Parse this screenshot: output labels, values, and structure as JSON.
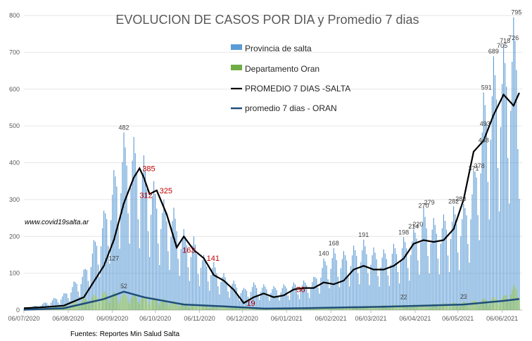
{
  "chart_data": {
    "type": "bar",
    "title": "EVOLUCION DE CASOS POR DIA y Promedio 7 dias",
    "ylim": [
      0,
      800
    ],
    "ytick_labels": [
      "0",
      "100",
      "200",
      "300",
      "400",
      "500",
      "600",
      "700",
      "800"
    ],
    "xtick_labels": [
      "06/07/2020",
      "06/08/2020",
      "06/09/2020",
      "06/10/2020",
      "06/11/2020",
      "06/12/2020",
      "06/01/2021",
      "06/02/2021",
      "06/03/2021",
      "06/04/2021",
      "06/05/2021",
      "06/06/2021"
    ],
    "grid": "horizontal",
    "legend_position": "top-right",
    "legend": [
      {
        "name": "Provincia de salta",
        "color": "#5b9bd5",
        "kind": "bar"
      },
      {
        "name": "Departamento Oran",
        "color": "#70ad47",
        "kind": "bar"
      },
      {
        "name": "PROMEDIO 7 DIAS -SALTA",
        "color": "#000000",
        "kind": "line"
      },
      {
        "name": "promedio 7 dias - ORAN",
        "color": "#1f4e79",
        "kind": "line"
      }
    ],
    "series_provincia": {
      "name": "Provincia de salta",
      "weekly_peaks": [
        {
          "x": "06/07/2020",
          "y": 3
        },
        {
          "x": "20/07/2020",
          "y": 20
        },
        {
          "x": "03/08/2020",
          "y": 45
        },
        {
          "x": "17/08/2020",
          "y": 110
        },
        {
          "x": "31/08/2020",
          "y": 270
        },
        {
          "x": "07/09/2020",
          "y": 380
        },
        {
          "x": "14/09/2020",
          "y": 482
        },
        {
          "x": "21/09/2020",
          "y": 470
        },
        {
          "x": "28/09/2020",
          "y": 420
        },
        {
          "x": "05/10/2020",
          "y": 350
        },
        {
          "x": "12/10/2020",
          "y": 300
        },
        {
          "x": "19/10/2020",
          "y": 278
        },
        {
          "x": "26/10/2020",
          "y": 220
        },
        {
          "x": "02/11/2020",
          "y": 200
        },
        {
          "x": "09/11/2020",
          "y": 150
        },
        {
          "x": "16/11/2020",
          "y": 130
        },
        {
          "x": "23/11/2020",
          "y": 100
        },
        {
          "x": "30/11/2020",
          "y": 80
        },
        {
          "x": "07/12/2020",
          "y": 60
        },
        {
          "x": "14/12/2020",
          "y": 75
        },
        {
          "x": "21/12/2020",
          "y": 70
        },
        {
          "x": "28/12/2020",
          "y": 65
        },
        {
          "x": "04/01/2021",
          "y": 70
        },
        {
          "x": "11/01/2021",
          "y": 75
        },
        {
          "x": "18/01/2021",
          "y": 80
        },
        {
          "x": "25/01/2021",
          "y": 90
        },
        {
          "x": "01/02/2021",
          "y": 140
        },
        {
          "x": "08/02/2021",
          "y": 168
        },
        {
          "x": "15/02/2021",
          "y": 160
        },
        {
          "x": "22/02/2021",
          "y": 175
        },
        {
          "x": "01/03/2021",
          "y": 191
        },
        {
          "x": "08/03/2021",
          "y": 170
        },
        {
          "x": "15/03/2021",
          "y": 165
        },
        {
          "x": "22/03/2021",
          "y": 180
        },
        {
          "x": "29/03/2021",
          "y": 198
        },
        {
          "x": "05/04/2021",
          "y": 220
        },
        {
          "x": "12/04/2021",
          "y": 279
        },
        {
          "x": "19/04/2021",
          "y": 250
        },
        {
          "x": "26/04/2021",
          "y": 260
        },
        {
          "x": "03/05/2021",
          "y": 282
        },
        {
          "x": "10/05/2021",
          "y": 288
        },
        {
          "x": "17/05/2021",
          "y": 378
        },
        {
          "x": "24/05/2021",
          "y": 591
        },
        {
          "x": "31/05/2021",
          "y": 689
        },
        {
          "x": "07/06/2021",
          "y": 718
        },
        {
          "x": "14/06/2021",
          "y": 795
        }
      ]
    },
    "series_oran": {
      "name": "Departamento Oran",
      "weekly_peaks": [
        {
          "x": "06/07/2020",
          "y": 2
        },
        {
          "x": "03/08/2020",
          "y": 12
        },
        {
          "x": "31/08/2020",
          "y": 52
        },
        {
          "x": "28/09/2020",
          "y": 40
        },
        {
          "x": "26/10/2020",
          "y": 20
        },
        {
          "x": "23/11/2020",
          "y": 12
        },
        {
          "x": "21/12/2020",
          "y": 6
        },
        {
          "x": "18/01/2021",
          "y": 8
        },
        {
          "x": "15/02/2021",
          "y": 10
        },
        {
          "x": "15/03/2021",
          "y": 14
        },
        {
          "x": "12/04/2021",
          "y": 16
        },
        {
          "x": "10/05/2021",
          "y": 23
        },
        {
          "x": "07/06/2021",
          "y": 40
        },
        {
          "x": "14/06/2021",
          "y": 68
        }
      ]
    },
    "series_avg_salta": {
      "name": "PROMEDIO 7 DIAS -SALTA",
      "points": [
        {
          "x": "06/07/2020",
          "y": 5
        },
        {
          "x": "20/07/2020",
          "y": 8
        },
        {
          "x": "03/08/2020",
          "y": 12
        },
        {
          "x": "17/08/2020",
          "y": 35
        },
        {
          "x": "31/08/2020",
          "y": 120
        },
        {
          "x": "07/09/2020",
          "y": 190
        },
        {
          "x": "14/09/2020",
          "y": 290
        },
        {
          "x": "21/09/2020",
          "y": 360
        },
        {
          "x": "25/09/2020",
          "y": 385
        },
        {
          "x": "28/09/2020",
          "y": 360
        },
        {
          "x": "02/10/2020",
          "y": 315
        },
        {
          "x": "07/10/2020",
          "y": 325
        },
        {
          "x": "14/10/2020",
          "y": 260
        },
        {
          "x": "21/10/2020",
          "y": 170
        },
        {
          "x": "26/10/2020",
          "y": 200
        },
        {
          "x": "02/11/2020",
          "y": 163
        },
        {
          "x": "09/11/2020",
          "y": 141
        },
        {
          "x": "16/11/2020",
          "y": 95
        },
        {
          "x": "23/11/2020",
          "y": 80
        },
        {
          "x": "30/11/2020",
          "y": 55
        },
        {
          "x": "07/12/2020",
          "y": 19
        },
        {
          "x": "14/12/2020",
          "y": 35
        },
        {
          "x": "21/12/2020",
          "y": 45
        },
        {
          "x": "28/12/2020",
          "y": 35
        },
        {
          "x": "04/01/2021",
          "y": 40
        },
        {
          "x": "11/01/2021",
          "y": 56
        },
        {
          "x": "18/01/2021",
          "y": 60
        },
        {
          "x": "25/01/2021",
          "y": 60
        },
        {
          "x": "01/02/2021",
          "y": 75
        },
        {
          "x": "08/02/2021",
          "y": 70
        },
        {
          "x": "15/02/2021",
          "y": 80
        },
        {
          "x": "22/02/2021",
          "y": 110
        },
        {
          "x": "01/03/2021",
          "y": 120
        },
        {
          "x": "08/03/2021",
          "y": 110
        },
        {
          "x": "15/03/2021",
          "y": 110
        },
        {
          "x": "22/03/2021",
          "y": 120
        },
        {
          "x": "29/03/2021",
          "y": 140
        },
        {
          "x": "05/04/2021",
          "y": 180
        },
        {
          "x": "12/04/2021",
          "y": 190
        },
        {
          "x": "19/04/2021",
          "y": 185
        },
        {
          "x": "26/04/2021",
          "y": 190
        },
        {
          "x": "03/05/2021",
          "y": 220
        },
        {
          "x": "10/05/2021",
          "y": 300
        },
        {
          "x": "17/05/2021",
          "y": 430
        },
        {
          "x": "24/05/2021",
          "y": 460
        },
        {
          "x": "31/05/2021",
          "y": 530
        },
        {
          "x": "07/06/2021",
          "y": 585
        },
        {
          "x": "14/06/2021",
          "y": 555
        },
        {
          "x": "18/06/2021",
          "y": 590
        }
      ]
    },
    "series_avg_oran": {
      "name": "promedio 7 dias - ORAN",
      "points": [
        {
          "x": "06/07/2020",
          "y": 1
        },
        {
          "x": "03/08/2020",
          "y": 5
        },
        {
          "x": "31/08/2020",
          "y": 30
        },
        {
          "x": "14/09/2020",
          "y": 50
        },
        {
          "x": "28/09/2020",
          "y": 35
        },
        {
          "x": "26/10/2020",
          "y": 15
        },
        {
          "x": "23/11/2020",
          "y": 10
        },
        {
          "x": "21/12/2020",
          "y": 4
        },
        {
          "x": "18/01/2021",
          "y": 5
        },
        {
          "x": "15/02/2021",
          "y": 7
        },
        {
          "x": "15/03/2021",
          "y": 9
        },
        {
          "x": "12/04/2021",
          "y": 12
        },
        {
          "x": "10/05/2021",
          "y": 15
        },
        {
          "x": "07/06/2021",
          "y": 25
        },
        {
          "x": "18/06/2021",
          "y": 30
        }
      ]
    },
    "data_labels_black": [
      {
        "x": "14/09/2020",
        "y": 482,
        "text": "482"
      },
      {
        "x": "07/09/2020",
        "y": 127,
        "text": "127"
      },
      {
        "x": "14/09/2020",
        "y": 52,
        "text": "52"
      },
      {
        "x": "01/02/2021",
        "y": 140,
        "text": "140"
      },
      {
        "x": "08/02/2021",
        "y": 168,
        "text": "168"
      },
      {
        "x": "01/03/2021",
        "y": 191,
        "text": "191"
      },
      {
        "x": "29/03/2021",
        "y": 198,
        "text": "198"
      },
      {
        "x": "05/04/2021",
        "y": 214,
        "text": "214"
      },
      {
        "x": "08/04/2021",
        "y": 220,
        "text": "220"
      },
      {
        "x": "12/04/2021",
        "y": 270,
        "text": "270"
      },
      {
        "x": "16/04/2021",
        "y": 279,
        "text": "279"
      },
      {
        "x": "03/05/2021",
        "y": 282,
        "text": "282"
      },
      {
        "x": "08/05/2021",
        "y": 288,
        "text": "288"
      },
      {
        "x": "17/05/2021",
        "y": 371,
        "text": "371"
      },
      {
        "x": "21/05/2021",
        "y": 378,
        "text": "378"
      },
      {
        "x": "24/05/2021",
        "y": 448,
        "text": "448"
      },
      {
        "x": "25/05/2021",
        "y": 493,
        "text": "493"
      },
      {
        "x": "26/05/2021",
        "y": 591,
        "text": "591"
      },
      {
        "x": "31/05/2021",
        "y": 689,
        "text": "689"
      },
      {
        "x": "06/06/2021",
        "y": 705,
        "text": "705"
      },
      {
        "x": "08/06/2021",
        "y": 718,
        "text": "718"
      },
      {
        "x": "14/06/2021",
        "y": 726,
        "text": "726"
      },
      {
        "x": "16/06/2021",
        "y": 795,
        "text": "795"
      },
      {
        "x": "29/03/2021",
        "y": 22,
        "text": "22"
      },
      {
        "x": "10/05/2021",
        "y": 23,
        "text": "23"
      }
    ],
    "data_labels_red": [
      {
        "x": "25/09/2020",
        "y": 385,
        "text": "385"
      },
      {
        "x": "23/09/2020",
        "y": 312,
        "text": "312"
      },
      {
        "x": "07/10/2020",
        "y": 325,
        "text": "325"
      },
      {
        "x": "23/10/2020",
        "y": 163,
        "text": "163"
      },
      {
        "x": "09/11/2020",
        "y": 141,
        "text": "141"
      },
      {
        "x": "07/12/2020",
        "y": 19,
        "text": "19"
      },
      {
        "x": "11/01/2021",
        "y": 56,
        "text": "56"
      }
    ]
  },
  "annotations": {
    "website": "www.covid19salta.ar",
    "source": "Fuentes: Reportes Min Salud Salta"
  }
}
